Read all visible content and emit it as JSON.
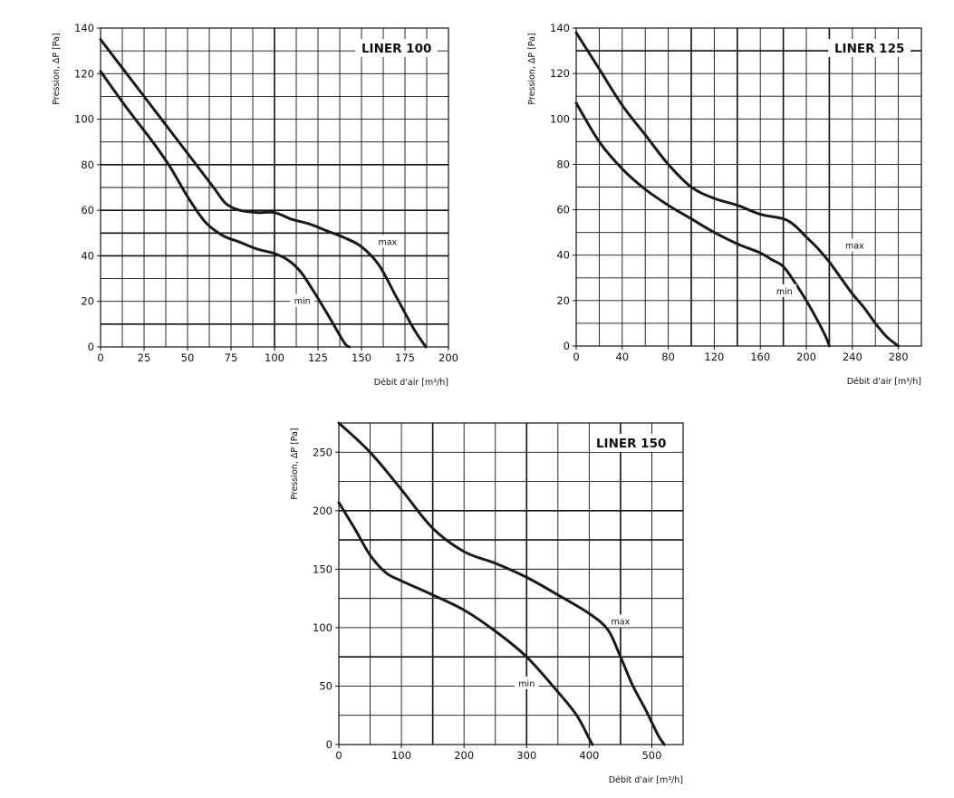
{
  "chart_data": [
    {
      "type": "line",
      "title": "LINER 100",
      "xlabel": "Débit d'air [m³/h]",
      "ylabel": "Pression, ΔP [Pa]",
      "xlim": [
        0,
        200
      ],
      "ylim": [
        0,
        140
      ],
      "xticks": [
        0,
        25,
        50,
        75,
        100,
        125,
        150,
        175,
        200
      ],
      "yticks": [
        0,
        20,
        40,
        60,
        80,
        100,
        120,
        140
      ],
      "x_grid": [
        12.5,
        25,
        37.5,
        50,
        62.5,
        75,
        87.5,
        100,
        112.5,
        125,
        137.5,
        150,
        162.5,
        175,
        187.5
      ],
      "x_grid_major": [
        100
      ],
      "y_grid": [
        10,
        20,
        30,
        40,
        50,
        60,
        70,
        80,
        90,
        100,
        110,
        120,
        130
      ],
      "y_grid_major": [
        10,
        40,
        50,
        60,
        80
      ],
      "series": [
        {
          "name": "max",
          "label_at": [
            165,
            46
          ],
          "points": [
            [
              0,
              135
            ],
            [
              20,
              115
            ],
            [
              40,
              95
            ],
            [
              55,
              80
            ],
            [
              65,
              70
            ],
            [
              72,
              63
            ],
            [
              80,
              60
            ],
            [
              90,
              59
            ],
            [
              100,
              59
            ],
            [
              110,
              56
            ],
            [
              120,
              54
            ],
            [
              130,
              51
            ],
            [
              140,
              48
            ],
            [
              150,
              44
            ],
            [
              160,
              36
            ],
            [
              170,
              22
            ],
            [
              180,
              8
            ],
            [
              187,
              0
            ]
          ]
        },
        {
          "name": "min",
          "label_at": [
            116,
            20
          ],
          "points": [
            [
              0,
              121
            ],
            [
              15,
              105
            ],
            [
              30,
              90
            ],
            [
              40,
              79
            ],
            [
              50,
              66
            ],
            [
              60,
              55
            ],
            [
              70,
              49
            ],
            [
              80,
              46
            ],
            [
              90,
              43
            ],
            [
              100,
              41
            ],
            [
              108,
              38
            ],
            [
              115,
              33
            ],
            [
              122,
              25
            ],
            [
              130,
              15
            ],
            [
              140,
              2
            ],
            [
              143,
              0
            ]
          ]
        }
      ]
    },
    {
      "type": "line",
      "title": "LINER 125",
      "xlabel": "Débit d'air [m³/h]",
      "ylabel": "Pression, ΔP [Pa]",
      "xlim": [
        0,
        300
      ],
      "ylim": [
        0,
        140
      ],
      "xticks": [
        0,
        40,
        80,
        120,
        160,
        200,
        240,
        280
      ],
      "yticks": [
        0,
        20,
        40,
        60,
        80,
        100,
        120,
        140
      ],
      "x_grid": [
        20,
        40,
        60,
        80,
        100,
        120,
        140,
        160,
        180,
        200,
        220,
        240,
        260,
        280
      ],
      "x_grid_major": [
        100,
        140,
        180,
        220
      ],
      "y_grid": [
        10,
        20,
        30,
        40,
        50,
        60,
        70,
        80,
        90,
        100,
        110,
        120,
        130
      ],
      "y_grid_major": [
        130
      ],
      "series": [
        {
          "name": "max",
          "label_at": [
            242,
            44
          ],
          "points": [
            [
              0,
              138
            ],
            [
              20,
              122
            ],
            [
              40,
              106
            ],
            [
              60,
              93
            ],
            [
              80,
              80
            ],
            [
              100,
              70
            ],
            [
              120,
              65
            ],
            [
              140,
              62
            ],
            [
              160,
              58
            ],
            [
              180,
              56
            ],
            [
              190,
              53
            ],
            [
              200,
              48
            ],
            [
              210,
              43
            ],
            [
              220,
              37
            ],
            [
              230,
              30
            ],
            [
              240,
              23
            ],
            [
              250,
              17
            ],
            [
              260,
              10
            ],
            [
              270,
              4
            ],
            [
              280,
              0
            ]
          ]
        },
        {
          "name": "min",
          "label_at": [
            181,
            24
          ],
          "points": [
            [
              0,
              107
            ],
            [
              20,
              90
            ],
            [
              40,
              78
            ],
            [
              60,
              69
            ],
            [
              80,
              62
            ],
            [
              100,
              56
            ],
            [
              120,
              50
            ],
            [
              140,
              45
            ],
            [
              160,
              41
            ],
            [
              170,
              38
            ],
            [
              180,
              35
            ],
            [
              190,
              28
            ],
            [
              200,
              20
            ],
            [
              210,
              11
            ],
            [
              217,
              4
            ],
            [
              220,
              0
            ]
          ]
        }
      ]
    },
    {
      "type": "line",
      "title": "LINER 150",
      "xlabel": "Débit d'air [m³/h]",
      "ylabel": "Pression, ΔP [Pa]",
      "xlim": [
        0,
        550
      ],
      "ylim": [
        0,
        275
      ],
      "xticks": [
        0,
        100,
        200,
        300,
        400,
        500
      ],
      "yticks": [
        0,
        50,
        100,
        150,
        200,
        250
      ],
      "x_grid": [
        50,
        100,
        150,
        200,
        250,
        300,
        350,
        400,
        450,
        500
      ],
      "x_grid_major": [
        150,
        300,
        450
      ],
      "y_grid": [
        25,
        50,
        75,
        100,
        125,
        150,
        175,
        200,
        225,
        250
      ],
      "y_grid_major": [
        75,
        175,
        200
      ],
      "series": [
        {
          "name": "max",
          "label_at": [
            450,
            105
          ],
          "points": [
            [
              0,
              275
            ],
            [
              50,
              250
            ],
            [
              100,
              218
            ],
            [
              150,
              185
            ],
            [
              200,
              165
            ],
            [
              250,
              155
            ],
            [
              300,
              143
            ],
            [
              350,
              128
            ],
            [
              400,
              112
            ],
            [
              430,
              98
            ],
            [
              450,
              75
            ],
            [
              470,
              50
            ],
            [
              490,
              30
            ],
            [
              510,
              8
            ],
            [
              520,
              0
            ]
          ]
        },
        {
          "name": "min",
          "label_at": [
            300,
            52
          ],
          "points": [
            [
              0,
              207
            ],
            [
              25,
              185
            ],
            [
              50,
              162
            ],
            [
              75,
              147
            ],
            [
              100,
              140
            ],
            [
              150,
              128
            ],
            [
              200,
              115
            ],
            [
              250,
              97
            ],
            [
              300,
              75
            ],
            [
              350,
              45
            ],
            [
              380,
              25
            ],
            [
              400,
              5
            ],
            [
              405,
              0
            ]
          ]
        }
      ]
    }
  ]
}
